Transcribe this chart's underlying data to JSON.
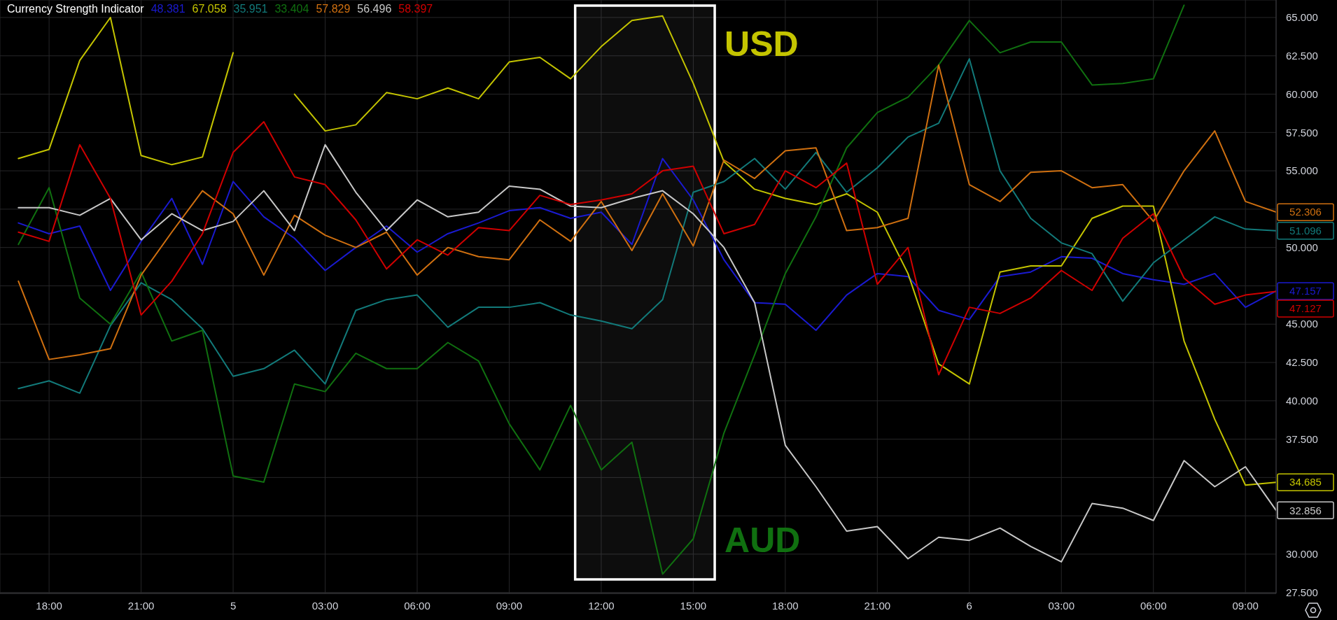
{
  "chart_data": {
    "type": "line",
    "title": "Currency Strength Indicator",
    "annotations": [
      "48.381",
      "67.058",
      "35.951",
      "33.404",
      "57.829",
      "56.496",
      "58.397"
    ],
    "x": [
      "--01-04T17:00",
      "--01-04T18:00",
      "--01-04T19:00",
      "--01-04T20:00",
      "--01-04T21:00",
      "--01-04T22:00",
      "--01-04T23:00",
      "--01-05T00:00",
      "--01-05T01:00",
      "--01-05T02:00",
      "--01-05T03:00",
      "--01-05T04:00",
      "--01-05T05:00",
      "--01-05T06:00",
      "--01-05T07:00",
      "--01-05T08:00",
      "--01-05T09:00",
      "--01-05T10:00",
      "--01-05T11:00",
      "--01-05T12:00",
      "--01-05T13:00",
      "--01-05T14:00",
      "--01-05T15:00",
      "--01-05T16:00",
      "--01-05T17:00",
      "--01-05T18:00",
      "--01-05T19:00",
      "--01-05T20:00",
      "--01-05T21:00",
      "--01-05T22:00",
      "--01-05T23:00",
      "--01-06T00:00",
      "--01-06T01:00",
      "--01-06T02:00",
      "--01-06T03:00",
      "--01-06T04:00",
      "--01-06T05:00",
      "--01-06T06:00",
      "--01-06T07:00",
      "--01-06T08:00",
      "--01-06T09:00",
      "--01-06T10:00"
    ],
    "xlim": [
      "--01-04T16:24",
      "--01-06T10:00"
    ],
    "xticks": [
      {
        "value": "--01-04T18:00",
        "label": "18:00"
      },
      {
        "value": "--01-04T21:00",
        "label": "21:00"
      },
      {
        "value": "--01-05T00:00",
        "label": "5"
      },
      {
        "value": "--01-05T03:00",
        "label": "03:00"
      },
      {
        "value": "--01-05T06:00",
        "label": "06:00"
      },
      {
        "value": "--01-05T09:00",
        "label": "09:00"
      },
      {
        "value": "--01-05T12:00",
        "label": "12:00"
      },
      {
        "value": "--01-05T15:00",
        "label": "15:00"
      },
      {
        "value": "--01-05T18:00",
        "label": "18:00"
      },
      {
        "value": "--01-05T21:00",
        "label": "21:00"
      },
      {
        "value": "--01-06T00:00",
        "label": "6"
      },
      {
        "value": "--01-06T03:00",
        "label": "03:00"
      },
      {
        "value": "--01-06T06:00",
        "label": "06:00"
      },
      {
        "value": "--01-06T09:00",
        "label": "09:00"
      }
    ],
    "ylim": [
      27.44,
      66.14
    ],
    "yticks": [
      {
        "value": 27.5,
        "label": "27.500"
      },
      {
        "value": 30,
        "label": "30.000"
      },
      {
        "value": 32.5,
        "label": null
      },
      {
        "value": 35,
        "label": null
      },
      {
        "value": 37.5,
        "label": "37.500"
      },
      {
        "value": 40,
        "label": "40.000"
      },
      {
        "value": 42.5,
        "label": "42.500"
      },
      {
        "value": 45,
        "label": "45.000"
      },
      {
        "value": 47.5,
        "label": null
      },
      {
        "value": 50,
        "label": "50.000"
      },
      {
        "value": 52.5,
        "label": null
      },
      {
        "value": 55,
        "label": "55.000"
      },
      {
        "value": 57.5,
        "label": "57.500"
      },
      {
        "value": 60,
        "label": "60.000"
      },
      {
        "value": 62.5,
        "label": "62.500"
      },
      {
        "value": 65,
        "label": "65.000"
      }
    ],
    "grid": true,
    "marker": "none",
    "line_style": "solid",
    "bands": [
      {
        "axis": "x",
        "from": "--01-05T11:09",
        "to": "--01-05T15:42",
        "color": "#ffffff"
      }
    ],
    "series": [
      {
        "color": "#1a1ad0",
        "values": [
          51.6,
          50.9,
          51.4,
          47.2,
          50.4,
          53.2,
          48.9,
          54.3,
          52.0,
          50.6,
          48.5,
          50.0,
          51.4,
          49.7,
          50.9,
          51.6,
          52.4,
          52.6,
          51.9,
          52.3,
          50.2,
          55.8,
          53.1,
          49.2,
          46.4,
          46.3,
          44.6,
          46.9,
          48.3,
          48.1,
          45.9,
          45.3,
          48.1,
          48.4,
          49.4,
          49.3,
          48.3,
          47.9,
          47.6,
          48.3,
          46.1,
          47.157
        ],
        "value_labels": [
          null,
          null,
          null,
          null,
          null,
          null,
          null,
          null,
          null,
          null,
          null,
          null,
          null,
          null,
          null,
          null,
          null,
          null,
          null,
          null,
          null,
          null,
          null,
          null,
          null,
          null,
          null,
          null,
          null,
          null,
          null,
          null,
          null,
          null,
          null,
          null,
          null,
          null,
          null,
          null,
          null,
          "47.157"
        ]
      },
      {
        "name": "USD",
        "color": "#c4c400",
        "values": [
          55.8,
          56.4,
          62.2,
          65.0,
          56.0,
          55.4,
          55.9,
          62.7,
          null,
          60.0,
          57.6,
          58.0,
          60.1,
          59.7,
          60.4,
          59.7,
          62.1,
          62.4,
          61.0,
          63.1,
          64.8,
          65.1,
          60.7,
          55.6,
          53.8,
          53.2,
          52.8,
          53.5,
          52.3,
          48.3,
          42.4,
          41.1,
          48.4,
          48.8,
          48.8,
          51.9,
          52.7,
          52.7,
          43.9,
          38.8,
          34.5,
          34.685
        ],
        "value_labels": [
          null,
          null,
          null,
          null,
          null,
          null,
          null,
          null,
          null,
          null,
          null,
          null,
          null,
          null,
          null,
          null,
          null,
          null,
          null,
          null,
          null,
          null,
          null,
          null,
          null,
          null,
          null,
          null,
          null,
          null,
          null,
          null,
          null,
          null,
          null,
          null,
          null,
          null,
          null,
          null,
          null,
          "34.685"
        ]
      },
      {
        "color": "#127a7a",
        "values": [
          40.8,
          41.3,
          40.5,
          44.9,
          47.7,
          46.6,
          44.7,
          41.6,
          42.1,
          43.3,
          41.1,
          45.9,
          46.6,
          46.9,
          44.8,
          46.1,
          46.1,
          46.4,
          45.6,
          45.2,
          44.7,
          46.6,
          53.6,
          54.3,
          55.8,
          53.8,
          56.2,
          53.6,
          55.2,
          57.2,
          58.1,
          62.3,
          55.0,
          51.9,
          50.3,
          49.6,
          46.5,
          49.0,
          50.5,
          52.0,
          51.2,
          51.096
        ],
        "value_labels": [
          null,
          null,
          null,
          null,
          null,
          null,
          null,
          null,
          null,
          null,
          null,
          null,
          null,
          null,
          null,
          null,
          null,
          null,
          null,
          null,
          null,
          null,
          null,
          null,
          null,
          null,
          null,
          null,
          null,
          null,
          null,
          null,
          null,
          null,
          null,
          null,
          null,
          null,
          null,
          null,
          null,
          "51.096"
        ]
      },
      {
        "name": "AUD",
        "color": "#107010",
        "values": [
          50.2,
          53.9,
          46.7,
          45.0,
          48.4,
          43.9,
          44.6,
          35.1,
          34.7,
          41.1,
          40.6,
          43.1,
          42.1,
          42.1,
          43.8,
          42.6,
          38.5,
          35.5,
          39.7,
          35.5,
          37.3,
          28.7,
          31.0,
          37.9,
          43.0,
          48.3,
          52.0,
          56.5,
          58.8,
          59.8,
          61.9,
          64.8,
          62.7,
          63.4,
          63.4,
          60.6,
          60.7,
          61.0,
          65.8,
          null,
          null,
          null
        ]
      },
      {
        "color": "#d07010",
        "values": [
          47.8,
          42.7,
          43.0,
          43.4,
          48.2,
          51.0,
          53.7,
          52.2,
          48.2,
          52.1,
          50.8,
          50.0,
          51.0,
          48.2,
          50.0,
          49.4,
          49.2,
          51.8,
          50.4,
          53.0,
          49.8,
          53.5,
          50.1,
          55.7,
          54.5,
          56.3,
          56.5,
          51.1,
          51.3,
          51.9,
          61.9,
          54.1,
          53.0,
          54.9,
          55.0,
          53.9,
          54.1,
          51.7,
          55.0,
          57.6,
          53.0,
          52.306
        ],
        "value_labels": [
          null,
          null,
          null,
          null,
          null,
          null,
          null,
          null,
          null,
          null,
          null,
          null,
          null,
          null,
          null,
          null,
          null,
          null,
          null,
          null,
          null,
          null,
          null,
          null,
          null,
          null,
          null,
          null,
          null,
          null,
          null,
          null,
          null,
          null,
          null,
          null,
          null,
          null,
          null,
          null,
          null,
          "52.306"
        ]
      },
      {
        "color": "#c8c8c8",
        "values": [
          52.6,
          52.6,
          52.1,
          53.2,
          50.5,
          52.2,
          51.1,
          51.7,
          53.7,
          51.1,
          56.7,
          53.6,
          51.1,
          53.1,
          52.0,
          52.3,
          54.0,
          53.8,
          52.7,
          52.6,
          53.2,
          53.7,
          52.2,
          50.0,
          46.4,
          37.1,
          34.4,
          31.5,
          31.8,
          29.7,
          31.1,
          30.9,
          31.7,
          30.5,
          29.5,
          33.3,
          33.0,
          32.2,
          36.1,
          34.4,
          35.7,
          32.856
        ],
        "value_labels": [
          null,
          null,
          null,
          null,
          null,
          null,
          null,
          null,
          null,
          null,
          null,
          null,
          null,
          null,
          null,
          null,
          null,
          null,
          null,
          null,
          null,
          null,
          null,
          null,
          null,
          null,
          null,
          null,
          null,
          null,
          null,
          null,
          null,
          null,
          null,
          null,
          null,
          null,
          null,
          null,
          null,
          "32.856"
        ]
      },
      {
        "color": "#d00000",
        "values": [
          51.0,
          50.4,
          56.7,
          53.2,
          45.6,
          47.8,
          50.9,
          56.2,
          58.2,
          54.6,
          54.1,
          51.8,
          48.6,
          50.5,
          49.5,
          51.3,
          51.1,
          53.4,
          52.8,
          53.1,
          53.5,
          55.0,
          55.3,
          50.9,
          51.5,
          55.0,
          53.9,
          55.5,
          47.6,
          50.0,
          41.7,
          46.1,
          45.7,
          46.7,
          48.5,
          47.2,
          50.6,
          52.2,
          48.0,
          46.3,
          46.9,
          47.127
        ],
        "value_labels": [
          null,
          null,
          null,
          null,
          null,
          null,
          null,
          null,
          null,
          null,
          null,
          null,
          null,
          null,
          null,
          null,
          null,
          null,
          null,
          null,
          null,
          null,
          null,
          null,
          null,
          null,
          null,
          null,
          null,
          null,
          null,
          null,
          null,
          null,
          null,
          null,
          null,
          null,
          null,
          null,
          null,
          "47.127"
        ]
      }
    ]
  }
}
